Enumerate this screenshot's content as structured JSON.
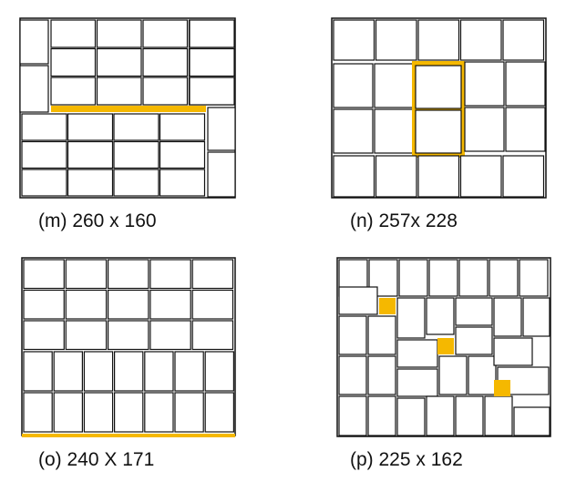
{
  "colors": {
    "line": "#111111",
    "highlight": "#F5B800",
    "background": "#FFFFFF"
  },
  "panels": [
    {
      "id": "m",
      "caption": "(m) 260 x 160"
    },
    {
      "id": "n",
      "caption": "(n) 257x 228"
    },
    {
      "id": "o",
      "caption": "(o) 240 X 171"
    },
    {
      "id": "p",
      "caption": "(p) 225 x 162"
    }
  ]
}
